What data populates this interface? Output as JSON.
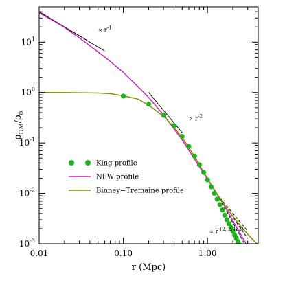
{
  "chart_data": {
    "type": "line",
    "xscale": "log",
    "yscale": "log",
    "xlim": [
      0.01,
      4.0
    ],
    "ylim": [
      0.001,
      50
    ],
    "xlabel": "r (Mpc)",
    "ylabel": "ρDM/ρ0",
    "ylabel_main": "ρ",
    "ylabel_sub1": "DM",
    "ylabel_sep": "/ρ",
    "ylabel_sub2": "0",
    "x_ticks": [
      {
        "value": 0.01,
        "label": "0.01"
      },
      {
        "value": 0.1,
        "label": "0.10"
      },
      {
        "value": 1.0,
        "label": "1.00"
      }
    ],
    "y_ticks": [
      {
        "value": 0.001,
        "base": "10",
        "exp": "-3"
      },
      {
        "value": 0.01,
        "base": "10",
        "exp": "-2"
      },
      {
        "value": 0.1,
        "base": "10",
        "exp": "-1"
      },
      {
        "value": 1,
        "base": "10",
        "exp": "0"
      },
      {
        "value": 10,
        "base": "10",
        "exp": "1"
      }
    ],
    "series": [
      {
        "name": "King profile",
        "kind": "points",
        "color": "#1db31d",
        "x": [
          0.1,
          0.2,
          0.3,
          0.4,
          0.5,
          0.6,
          0.7,
          0.8,
          0.9,
          1.0,
          1.1,
          1.2,
          1.3,
          1.4,
          1.5,
          1.6,
          1.7,
          1.8,
          1.9,
          2.0,
          2.1,
          2.2,
          2.3,
          2.4
        ],
        "y": [
          0.85,
          0.59,
          0.355,
          0.22,
          0.135,
          0.085,
          0.055,
          0.037,
          0.026,
          0.0185,
          0.0135,
          0.01,
          0.0077,
          0.006,
          0.0047,
          0.0037,
          0.003,
          0.0025,
          0.0021,
          0.00175,
          0.00148,
          0.00127,
          0.00109,
          0.00095
        ]
      },
      {
        "name": "NFW profile",
        "kind": "line",
        "color": "#d020b8",
        "x": [
          0.01,
          0.015,
          0.02,
          0.03,
          0.05,
          0.07,
          0.1,
          0.15,
          0.2,
          0.3,
          0.4,
          0.5,
          0.7,
          1.0,
          1.5,
          2.0,
          2.5,
          3.0,
          4.0
        ],
        "y": [
          38,
          26,
          19.5,
          12.2,
          6.4,
          4.15,
          2.5,
          1.3,
          0.8,
          0.36,
          0.19,
          0.115,
          0.048,
          0.019,
          0.0066,
          0.0029,
          0.0015,
          0.00087,
          0.00035
        ]
      },
      {
        "name": "Binney-Tremaine profile",
        "kind": "line",
        "color": "#8a8a00",
        "x": [
          0.01,
          0.02,
          0.03,
          0.05,
          0.07,
          0.1,
          0.15,
          0.2,
          0.3,
          0.4,
          0.5,
          0.7,
          1.0,
          1.5,
          2.0,
          2.5,
          3.0,
          3.5,
          4.0
        ],
        "y": [
          1.0,
          0.995,
          0.99,
          0.975,
          0.95,
          0.86,
          0.74,
          0.56,
          0.34,
          0.205,
          0.128,
          0.054,
          0.0195,
          0.0067,
          0.0035,
          0.0022,
          0.00155,
          0.00118,
          0.00095
        ]
      }
    ],
    "reference_lines": [
      {
        "slope": -1,
        "x": [
          0.01,
          0.06
        ],
        "y0": 40,
        "style": "solid",
        "label": "∝ r",
        "exp": "-1",
        "label_x": 0.05,
        "label_y": 16
      },
      {
        "slope": -2,
        "x": [
          0.2,
          0.5
        ],
        "y0": 1.0,
        "style": "solid",
        "label": "∝ r",
        "exp": "-2",
        "label_x": 0.6,
        "label_y": 0.28
      },
      {
        "slope": -2,
        "x": [
          1.3,
          3.0
        ],
        "y0": 0.0095,
        "style": "dashed"
      },
      {
        "slope": -2.4,
        "x": [
          1.3,
          3.0
        ],
        "y0": 0.0095,
        "style": "dashed"
      },
      {
        "slope": -3,
        "x": [
          1.3,
          3.0
        ],
        "y0": 0.0095,
        "style": "dashed"
      }
    ],
    "annotation_3": {
      "text": "∝ r",
      "exp": "-(2, 2.4, 3)",
      "x": 1.05,
      "y": 0.0016
    },
    "legend": {
      "placement": "lower-left",
      "entries": [
        {
          "label": "King profile",
          "kind": "points",
          "color": "#1db31d"
        },
        {
          "label": "NFW profile",
          "kind": "line",
          "color": "#d020b8"
        },
        {
          "label": "Binney−Tremaine profile",
          "kind": "line",
          "color": "#8a8a00"
        }
      ]
    }
  }
}
